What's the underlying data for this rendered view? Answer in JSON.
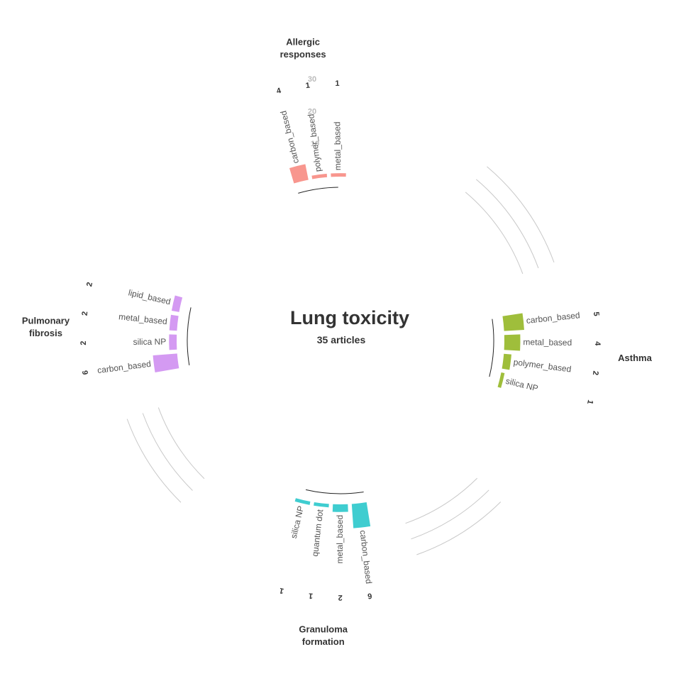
{
  "chart_data": {
    "type": "circular-bar",
    "title": "Lung toxicity",
    "subtitle": "35 articles",
    "radial_ticks": [
      "10",
      "20",
      "30"
    ],
    "groups": [
      {
        "name": "Allergic responses",
        "color": "#F8968E",
        "bars": [
          {
            "label": "carbon_based",
            "value": 4
          },
          {
            "label": "polymer_based",
            "value": 1
          },
          {
            "label": "metal_based",
            "value": 1
          }
        ]
      },
      {
        "name": "Asthma",
        "color": "#9FBE3B",
        "bars": [
          {
            "label": "carbon_based",
            "value": 5
          },
          {
            "label": "metal_based",
            "value": 4
          },
          {
            "label": "polymer_based",
            "value": 2
          },
          {
            "label": "silica NP",
            "value": 1
          }
        ]
      },
      {
        "name": "Granuloma formation",
        "color": "#3FCDD0",
        "bars": [
          {
            "label": "carbon_based",
            "value": 6
          },
          {
            "label": "metal_based",
            "value": 2
          },
          {
            "label": "quantum dot",
            "value": 1
          },
          {
            "label": "silica NP",
            "value": 1
          }
        ]
      },
      {
        "name": "Pulmonary fibrosis",
        "color": "#D49AF2",
        "bars": [
          {
            "label": "carbon_based",
            "value": 6
          },
          {
            "label": "silica NP",
            "value": 2
          },
          {
            "label": "metal_based",
            "value": 2
          },
          {
            "label": "lipid_based",
            "value": 2
          }
        ]
      }
    ]
  }
}
